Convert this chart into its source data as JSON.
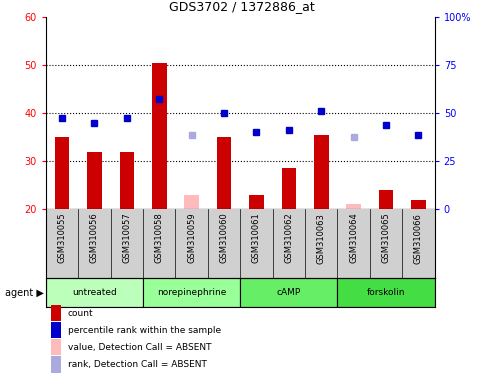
{
  "title": "GDS3702 / 1372886_at",
  "samples": [
    "GSM310055",
    "GSM310056",
    "GSM310057",
    "GSM310058",
    "GSM310059",
    "GSM310060",
    "GSM310061",
    "GSM310062",
    "GSM310063",
    "GSM310064",
    "GSM310065",
    "GSM310066"
  ],
  "agents": [
    {
      "label": "untreated",
      "indices": [
        0,
        1,
        2
      ],
      "color": "#bbffbb"
    },
    {
      "label": "norepinephrine",
      "indices": [
        3,
        4,
        5
      ],
      "color": "#99ff99"
    },
    {
      "label": "cAMP",
      "indices": [
        6,
        7,
        8
      ],
      "color": "#66ee66"
    },
    {
      "label": "forskolin",
      "indices": [
        9,
        10,
        11
      ],
      "color": "#44dd44"
    }
  ],
  "count_values": [
    35,
    32,
    32,
    50.5,
    null,
    35,
    23,
    28.5,
    35.5,
    null,
    24,
    22
  ],
  "rank_values": [
    39,
    38,
    39,
    43,
    null,
    40,
    36,
    36.5,
    40.5,
    null,
    37.5,
    35.5
  ],
  "absent_count": [
    null,
    null,
    null,
    null,
    23,
    null,
    null,
    null,
    null,
    21,
    null,
    null
  ],
  "absent_rank": [
    null,
    null,
    null,
    null,
    35.5,
    null,
    null,
    null,
    null,
    35,
    null,
    null
  ],
  "ylim_left": [
    20,
    60
  ],
  "ylim_right": [
    0,
    100
  ],
  "yticks_left": [
    20,
    30,
    40,
    50,
    60
  ],
  "yticks_right": [
    0,
    25,
    50,
    75,
    100
  ],
  "ytick_labels_right": [
    "0",
    "25",
    "50",
    "75",
    "100%"
  ],
  "bar_color_present": "#cc0000",
  "bar_color_absent": "#ffbbbb",
  "rank_color_present": "#0000cc",
  "rank_color_absent": "#aaaadd",
  "sample_box_color": "#d0d0d0",
  "legend_items": [
    {
      "label": "count",
      "color": "#cc0000"
    },
    {
      "label": "percentile rank within the sample",
      "color": "#0000cc"
    },
    {
      "label": "value, Detection Call = ABSENT",
      "color": "#ffbbbb"
    },
    {
      "label": "rank, Detection Call = ABSENT",
      "color": "#aaaadd"
    }
  ]
}
